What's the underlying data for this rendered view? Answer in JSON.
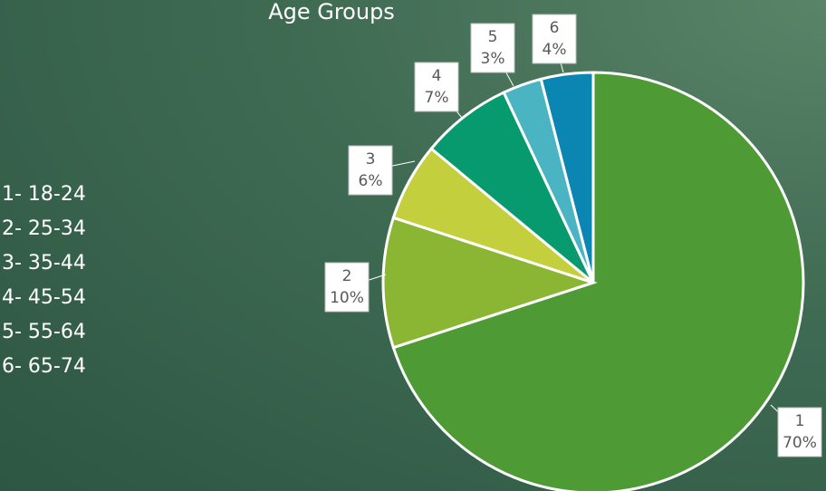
{
  "chart_data": {
    "type": "pie",
    "title": "Age Groups",
    "categories": [
      "1",
      "2",
      "3",
      "4",
      "5",
      "6"
    ],
    "values": [
      70,
      10,
      6,
      7,
      3,
      4
    ],
    "value_labels": [
      "70%",
      "10%",
      "6%",
      "7%",
      "3%",
      "4%"
    ],
    "colors": [
      "#4e9b36",
      "#8ab634",
      "#c4cf3d",
      "#079a6f",
      "#4ab4c2",
      "#0b86b3"
    ],
    "legend_text": [
      "1- 18-24",
      "2- 25-34",
      "3- 35-44",
      "4- 45-54",
      "5- 55-64",
      "6- 65-74"
    ]
  }
}
